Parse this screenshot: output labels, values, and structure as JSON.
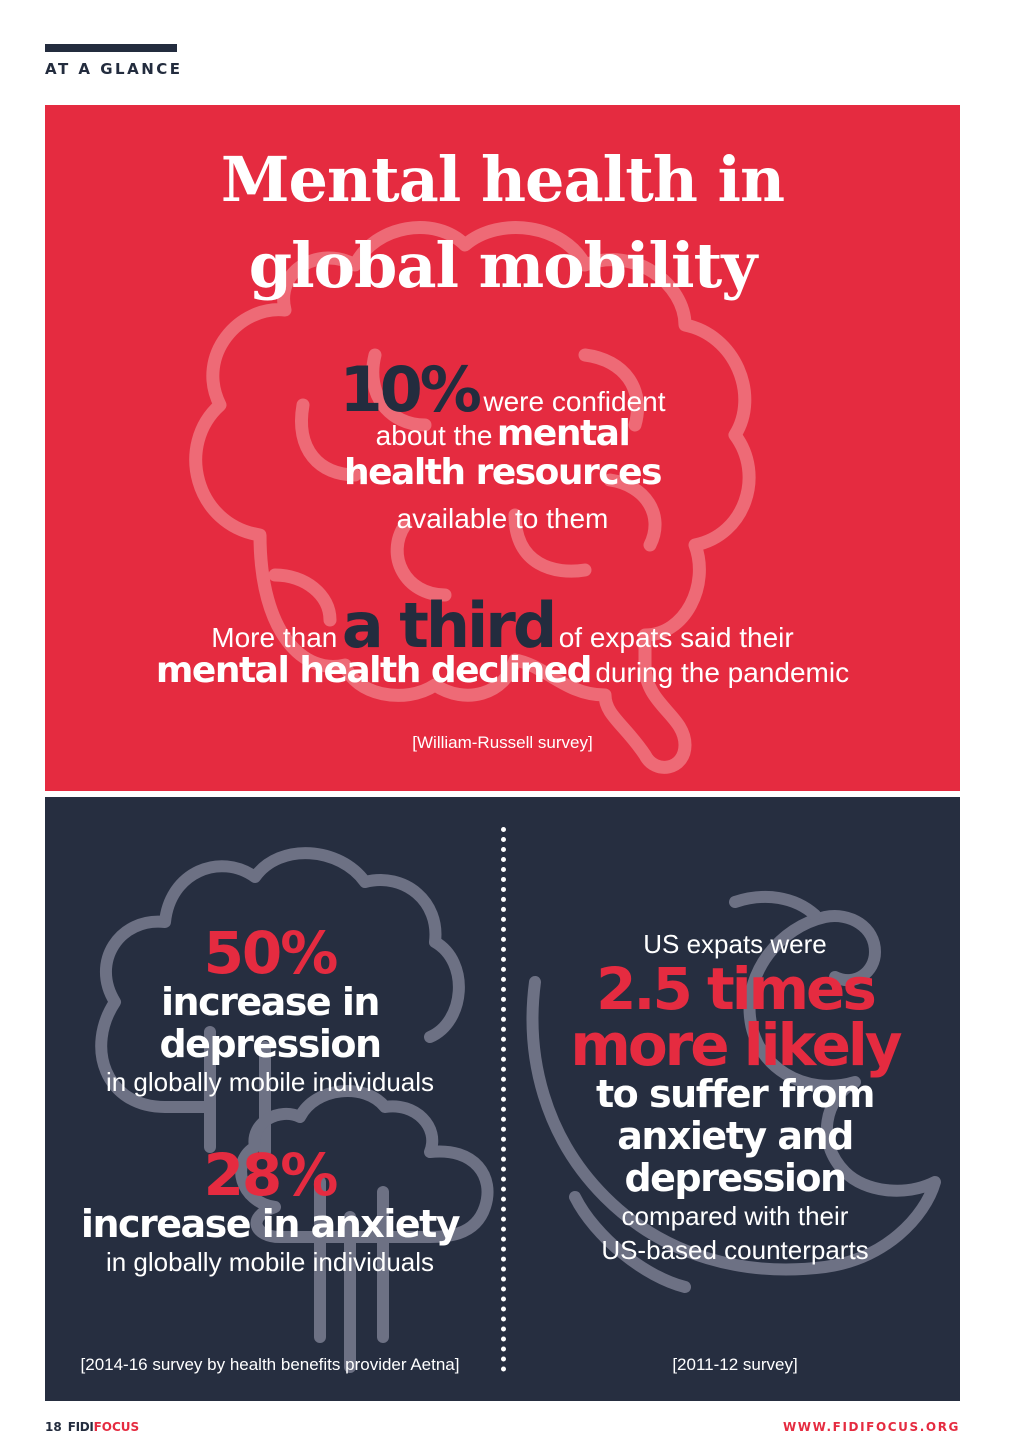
{
  "header": {
    "section_label": "AT A GLANCE"
  },
  "red_panel": {
    "title_line1": "Mental health in",
    "title_line2": "global mobility",
    "stat1": {
      "value": "10%",
      "text_a": "were confident",
      "text_b": "about the",
      "bold_a": "mental",
      "bold_b": "health resources",
      "text_c": "available to them"
    },
    "stat2": {
      "text_a": "More than",
      "value": "a third",
      "text_b": "of expats said their",
      "bold_a": "mental health declined",
      "text_c": "during the pandemic"
    },
    "source": "[William-Russell survey]",
    "icon": "brain-icon"
  },
  "navy_panel": {
    "left": {
      "stat1_value": "50%",
      "stat1_bold_a": "increase in",
      "stat1_bold_b": "depression",
      "stat1_text": "in globally mobile individuals",
      "stat2_value": "28%",
      "stat2_bold": "increase in anxiety",
      "stat2_text": "in globally mobile individuals",
      "source": "[2014-16 survey by health benefits provider Aetna]",
      "icon": "rain-cloud-icon"
    },
    "right": {
      "text_a": "US expats were",
      "red_a": "2.5 times",
      "red_b": "more likely",
      "bold_a": "to suffer from",
      "bold_b": "anxiety and",
      "bold_c": "depression",
      "text_b": "compared with their",
      "text_c": "US-based counterparts",
      "source": "[2011-12 survey]",
      "icon": "wave-icon"
    }
  },
  "footer": {
    "page_number": "18",
    "brand_a": "FIDI",
    "brand_b": "FOCUS",
    "website": "WWW.FIDIFOCUS.ORG"
  },
  "colors": {
    "red": "#e52b40",
    "navy": "#262e40",
    "dark": "#232c3e"
  }
}
